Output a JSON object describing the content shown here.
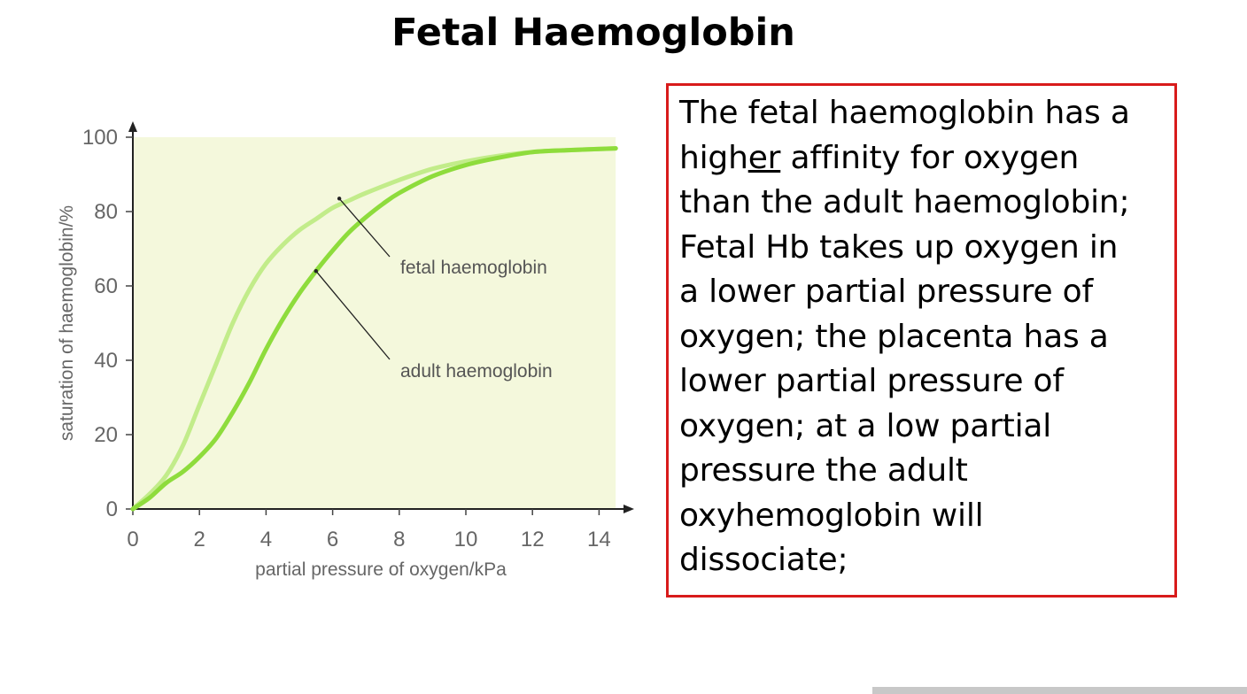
{
  "slide": {
    "title": "Fetal Haemoglobin"
  },
  "chart_data": {
    "type": "line",
    "title": "",
    "xlabel": "partial pressure of oxygen/kPa",
    "ylabel": "saturation of haemoglobin/%",
    "xlim": [
      0,
      14.5
    ],
    "ylim": [
      0,
      100
    ],
    "x_ticks": [
      0,
      2,
      4,
      6,
      8,
      10,
      12,
      14
    ],
    "y_ticks": [
      0,
      20,
      40,
      60,
      80,
      100
    ],
    "grid": false,
    "background_color": "#f4f8dc",
    "series": [
      {
        "name": "fetal haemoglobin",
        "color": "#c2ec8a",
        "x": [
          0,
          0.5,
          1,
          1.5,
          2,
          2.5,
          3,
          3.5,
          4,
          4.5,
          5,
          5.5,
          6,
          6.5,
          7,
          8,
          9,
          10,
          11,
          12,
          13,
          14.5
        ],
        "y": [
          0,
          4,
          9,
          17,
          28,
          39,
          50,
          59,
          66,
          71,
          75,
          78,
          81,
          83,
          85,
          88.5,
          91.5,
          93.5,
          95,
          96,
          96.5,
          97
        ]
      },
      {
        "name": "adult haemoglobin",
        "color": "#8edc3c",
        "x": [
          0,
          0.5,
          1,
          1.5,
          2,
          2.5,
          3,
          3.5,
          4,
          4.5,
          5,
          5.5,
          6,
          6.5,
          7,
          7.5,
          8,
          9,
          10,
          11,
          12,
          13,
          14.5
        ],
        "y": [
          0,
          3,
          7,
          10,
          14,
          19,
          26,
          34,
          43,
          51,
          58,
          64,
          69.5,
          74.5,
          78.5,
          82,
          85,
          89.5,
          92.5,
          94.5,
          96,
          96.5,
          97
        ]
      }
    ],
    "annotations": [
      {
        "text": "fetal haemoglobin",
        "series": "fetal haemoglobin",
        "point": [
          6.2,
          83.5
        ]
      },
      {
        "text": "adult haemoglobin",
        "series": "adult haemoglobin",
        "point": [
          5.5,
          64
        ]
      }
    ]
  },
  "text_box": {
    "border_color": "#d81b1b",
    "line1_a": "The fetal haemoglobin has a",
    "line2_a": "high",
    "line2_u": "er",
    "line2_b": " affinity for oxygen",
    "line3": "than the adult haemoglobin;",
    "line4": "Fetal Hb takes up oxygen in",
    "line5": "a lower partial pressure of",
    "line6": "oxygen; the placenta has a",
    "line7": "lower partial pressure of",
    "line8": "oxygen; at a low partial",
    "line9": "pressure the adult",
    "line10": "oxyhemoglobin will",
    "line11": "dissociate;"
  }
}
